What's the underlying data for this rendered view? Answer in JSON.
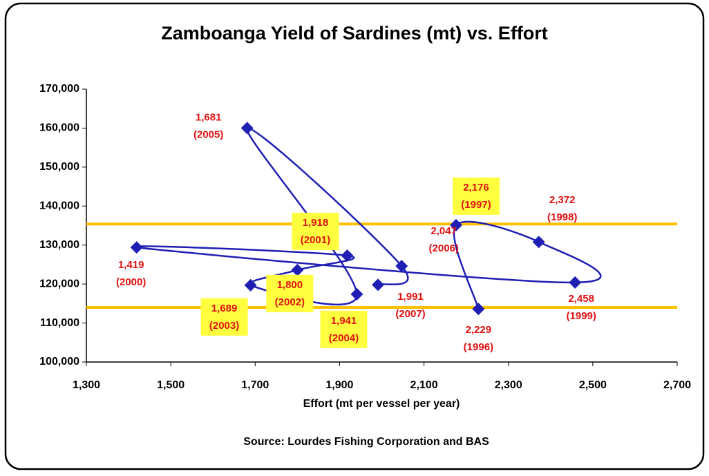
{
  "chart_data": {
    "type": "scatter",
    "title": "Zamboanga Yield of Sardines (mt) vs. Effort",
    "x_label": "Effort (mt per vessel per year)",
    "source": "Source:  Lourdes Fishing Corporation and BAS",
    "x": [
      2229,
      2176,
      2372,
      2458,
      1419,
      1918,
      1800,
      1689,
      1941,
      1681,
      2047,
      1991
    ],
    "value_labels": [
      "2,229",
      "2,176",
      "2,372",
      "2,458",
      "1,419",
      "1,918",
      "1,800",
      "1,689",
      "1,941",
      "1,681",
      "2,047",
      "1,991"
    ],
    "years": [
      "(1996)",
      "(1997)",
      "(1998)",
      "(1999)",
      "(2000)",
      "(2001)",
      "(2002)",
      "(2003)",
      "(2004)",
      "(2005)",
      "(2006)",
      "(2007)"
    ],
    "highlighted": [
      false,
      true,
      false,
      false,
      false,
      true,
      true,
      true,
      true,
      false,
      false,
      false
    ],
    "values": [
      113600,
      135100,
      130800,
      120400,
      129400,
      127300,
      123600,
      119700,
      117400,
      160000,
      124600,
      119800
    ],
    "color": "#1f1fb4",
    "label_color": "#e01010",
    "highlight_color": "#ffff40",
    "reference_lines": [
      135400,
      114000
    ],
    "reference_color": "#ffc000",
    "xlim": [
      1300,
      2700
    ],
    "xticks": [
      {
        "value": 1300,
        "label": "1,300"
      },
      {
        "value": 1500,
        "label": "1,500"
      },
      {
        "value": 1700,
        "label": "1,700"
      },
      {
        "value": 1900,
        "label": "1,900"
      },
      {
        "value": 2100,
        "label": "2,100"
      },
      {
        "value": 2300,
        "label": "2,300"
      },
      {
        "value": 2500,
        "label": "2,500"
      },
      {
        "value": 2700,
        "label": "2,700"
      }
    ],
    "ylim": [
      100000,
      170000
    ],
    "yticks": [
      {
        "value": 100000,
        "label": "100,000"
      },
      {
        "value": 110000,
        "label": "110,000"
      },
      {
        "value": 120000,
        "label": "120,000"
      },
      {
        "value": 130000,
        "label": "130,000"
      },
      {
        "value": 140000,
        "label": "140,000"
      },
      {
        "value": 150000,
        "label": "150,000"
      },
      {
        "value": 160000,
        "label": "160,000"
      },
      {
        "value": 170000,
        "label": "170,000"
      }
    ],
    "grid": false
  }
}
